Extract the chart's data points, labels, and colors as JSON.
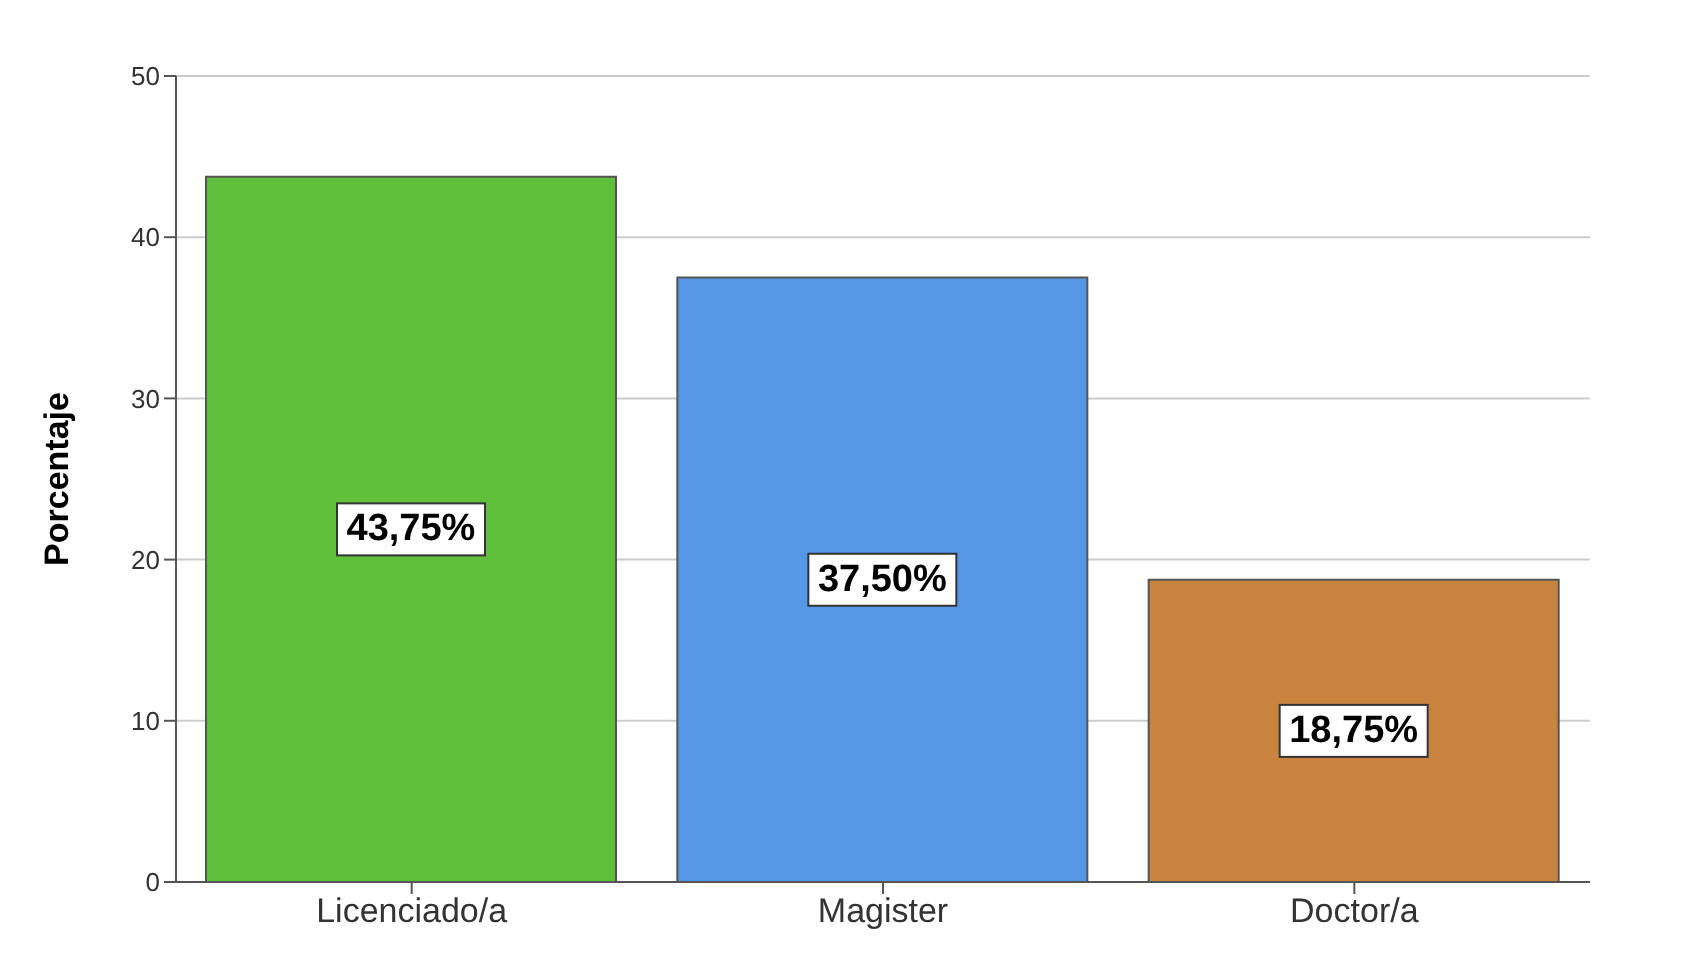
{
  "chart_data": {
    "type": "bar",
    "ylabel": "Porcentaje",
    "categories": [
      "Licenciado/a",
      "Magister",
      "Doctor/a"
    ],
    "values": [
      43.75,
      37.5,
      18.75
    ],
    "colors": [
      "#5fbf3a",
      "#5596e6",
      "#c8843f"
    ],
    "value_labels": [
      "43,75%",
      "37,50%",
      "18,75%"
    ],
    "ylim": [
      0,
      50
    ],
    "yticks": [
      0,
      10,
      20,
      30,
      40,
      50
    ],
    "grid": "y"
  }
}
